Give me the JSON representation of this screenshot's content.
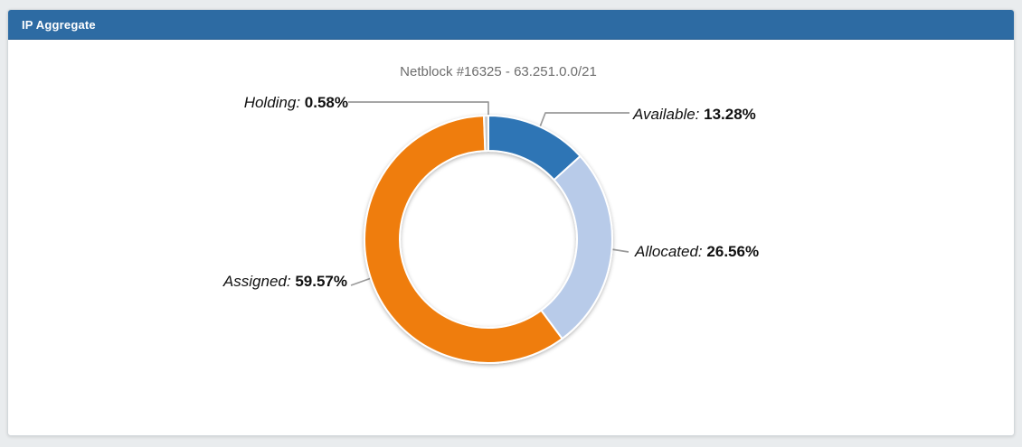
{
  "panel": {
    "title": "IP Aggregate"
  },
  "chart_data": {
    "type": "pie",
    "subtype": "donut",
    "title": "Netblock #16325 - 63.251.0.0/21",
    "start_angle_deg": 0,
    "direction": "clockwise",
    "inner_radius_ratio": 0.715,
    "legend_position": "callout-labels",
    "slices": [
      {
        "name": "Available",
        "label": "Available:",
        "value_pct": 13.28,
        "value_label": "13.28%",
        "color": "#2e74b5"
      },
      {
        "name": "Allocated",
        "label": "Allocated:",
        "value_pct": 26.56,
        "value_label": "26.56%",
        "color": "#b8cbe9"
      },
      {
        "name": "Assigned",
        "label": "Assigned:",
        "value_pct": 59.57,
        "value_label": "59.57%",
        "color": "#ef7d08"
      },
      {
        "name": "Holding",
        "label": "Holding:",
        "value_pct": 0.58,
        "value_label": "0.58%",
        "color": "#c9c9c9"
      }
    ],
    "colors": {
      "leader_line": "#9a9a9a",
      "title_text": "#6d6d6d",
      "label_text": "#111111"
    }
  },
  "theme": {
    "header_bg": "#2d6ba3",
    "header_text": "#ffffff",
    "page_bg": "#e9ecee",
    "panel_bg": "#ffffff"
  }
}
